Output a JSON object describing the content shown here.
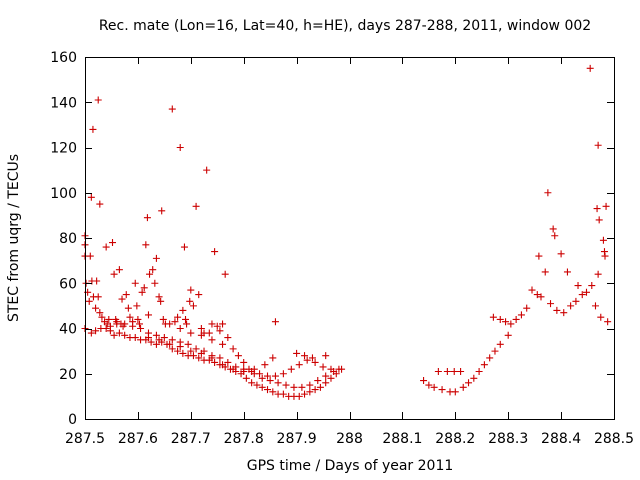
{
  "chart_data": {
    "type": "scatter",
    "title": "Rec. mate (Lon=16, Lat=40, h=HE), days 287-288, 2011, window 002",
    "xlabel": "GPS time / Days of year 2011",
    "ylabel": "STEC from uqrg / TECUs",
    "xlim": [
      287.5,
      288.5
    ],
    "ylim": [
      0,
      160
    ],
    "xticks": [
      {
        "value": 287.5,
        "label": "287.5"
      },
      {
        "value": 287.6,
        "label": "287.6"
      },
      {
        "value": 287.7,
        "label": "287.7"
      },
      {
        "value": 287.8,
        "label": "287.8"
      },
      {
        "value": 287.9,
        "label": "287.9"
      },
      {
        "value": 288.0,
        "label": "288"
      },
      {
        "value": 288.1,
        "label": "288.1"
      },
      {
        "value": 288.2,
        "label": "288.2"
      },
      {
        "value": 288.3,
        "label": "288.3"
      },
      {
        "value": 288.4,
        "label": "288.4"
      },
      {
        "value": 288.5,
        "label": "288.5"
      }
    ],
    "yticks": [
      {
        "value": 0,
        "label": "0"
      },
      {
        "value": 20,
        "label": "20"
      },
      {
        "value": 40,
        "label": "40"
      },
      {
        "value": 60,
        "label": "60"
      },
      {
        "value": 80,
        "label": "80"
      },
      {
        "value": 100,
        "label": "100"
      },
      {
        "value": 120,
        "label": "120"
      },
      {
        "value": 140,
        "label": "140"
      },
      {
        "value": 160,
        "label": "160"
      }
    ],
    "grid": false,
    "marker": "+",
    "marker_color": "#cc0000",
    "series": [
      {
        "name": "STEC",
        "points": [
          [
            287.5,
            81
          ],
          [
            287.5,
            77
          ],
          [
            287.5,
            72
          ],
          [
            287.502,
            60
          ],
          [
            287.505,
            56
          ],
          [
            287.508,
            52
          ],
          [
            287.512,
            98
          ],
          [
            287.515,
            128
          ],
          [
            287.51,
            72
          ],
          [
            287.513,
            61
          ],
          [
            287.516,
            54
          ],
          [
            287.52,
            49
          ],
          [
            287.525,
            141
          ],
          [
            287.528,
            95
          ],
          [
            287.522,
            61
          ],
          [
            287.525,
            54
          ],
          [
            287.528,
            47
          ],
          [
            287.532,
            45
          ],
          [
            287.54,
            76
          ],
          [
            287.537,
            43
          ],
          [
            287.542,
            42
          ],
          [
            287.548,
            41
          ],
          [
            287.552,
            78
          ],
          [
            287.555,
            64
          ],
          [
            287.558,
            44
          ],
          [
            287.56,
            42
          ],
          [
            287.565,
            66
          ],
          [
            287.57,
            53
          ],
          [
            287.568,
            42
          ],
          [
            287.572,
            41
          ],
          [
            287.578,
            55
          ],
          [
            287.582,
            49
          ],
          [
            287.585,
            45
          ],
          [
            287.59,
            43
          ],
          [
            287.595,
            60
          ],
          [
            287.598,
            50
          ],
          [
            287.6,
            44
          ],
          [
            287.603,
            42
          ],
          [
            287.608,
            56
          ],
          [
            287.612,
            58
          ],
          [
            287.615,
            77
          ],
          [
            287.618,
            89
          ],
          [
            287.62,
            46
          ],
          [
            287.622,
            64
          ],
          [
            287.628,
            66
          ],
          [
            287.632,
            60
          ],
          [
            287.635,
            71
          ],
          [
            287.64,
            54
          ],
          [
            287.643,
            52
          ],
          [
            287.645,
            92
          ],
          [
            287.648,
            44
          ],
          [
            287.652,
            42
          ],
          [
            287.665,
            137
          ],
          [
            287.67,
            43
          ],
          [
            287.675,
            45
          ],
          [
            287.68,
            120
          ],
          [
            287.685,
            48
          ],
          [
            287.69,
            44
          ],
          [
            287.688,
            76
          ],
          [
            287.692,
            42
          ],
          [
            287.698,
            52
          ],
          [
            287.7,
            57
          ],
          [
            287.705,
            50
          ],
          [
            287.71,
            94
          ],
          [
            287.715,
            55
          ],
          [
            287.72,
            40
          ],
          [
            287.725,
            38
          ],
          [
            287.73,
            110
          ],
          [
            287.735,
            38
          ],
          [
            287.74,
            42
          ],
          [
            287.745,
            74
          ],
          [
            287.75,
            41
          ],
          [
            287.755,
            39
          ],
          [
            287.76,
            42
          ],
          [
            287.765,
            64
          ],
          [
            287.77,
            36
          ],
          [
            287.86,
            43
          ],
          [
            287.5,
            40
          ],
          [
            287.512,
            38
          ],
          [
            287.52,
            39
          ],
          [
            287.53,
            40
          ],
          [
            287.54,
            40
          ],
          [
            287.548,
            39
          ],
          [
            287.555,
            37
          ],
          [
            287.565,
            38
          ],
          [
            287.575,
            37
          ],
          [
            287.585,
            36
          ],
          [
            287.595,
            36
          ],
          [
            287.605,
            35
          ],
          [
            287.615,
            35
          ],
          [
            287.625,
            34
          ],
          [
            287.635,
            33
          ],
          [
            287.645,
            34
          ],
          [
            287.655,
            33
          ],
          [
            287.665,
            31
          ],
          [
            287.675,
            30
          ],
          [
            287.685,
            29
          ],
          [
            287.695,
            28
          ],
          [
            287.705,
            28
          ],
          [
            287.715,
            27
          ],
          [
            287.725,
            26
          ],
          [
            287.735,
            26
          ],
          [
            287.745,
            25
          ],
          [
            287.755,
            24
          ],
          [
            287.765,
            23
          ],
          [
            287.775,
            22
          ],
          [
            287.785,
            21
          ],
          [
            287.795,
            20
          ],
          [
            287.805,
            18
          ],
          [
            287.815,
            16
          ],
          [
            287.825,
            15
          ],
          [
            287.835,
            14
          ],
          [
            287.845,
            13
          ],
          [
            287.855,
            12
          ],
          [
            287.865,
            11
          ],
          [
            287.875,
            11
          ],
          [
            287.885,
            10
          ],
          [
            287.895,
            10
          ],
          [
            287.905,
            10
          ],
          [
            287.915,
            11
          ],
          [
            287.925,
            12
          ],
          [
            287.935,
            13
          ],
          [
            287.945,
            14
          ],
          [
            287.955,
            16
          ],
          [
            287.965,
            18
          ],
          [
            287.975,
            20
          ],
          [
            287.985,
            22
          ],
          [
            287.545,
            44
          ],
          [
            287.56,
            43
          ],
          [
            287.575,
            42
          ],
          [
            287.59,
            41
          ],
          [
            287.605,
            40
          ],
          [
            287.62,
            38
          ],
          [
            287.635,
            37
          ],
          [
            287.65,
            36
          ],
          [
            287.665,
            35
          ],
          [
            287.68,
            34
          ],
          [
            287.695,
            33
          ],
          [
            287.71,
            31
          ],
          [
            287.725,
            30
          ],
          [
            287.74,
            28
          ],
          [
            287.755,
            27
          ],
          [
            287.77,
            25
          ],
          [
            287.785,
            23
          ],
          [
            287.8,
            22
          ],
          [
            287.815,
            21
          ],
          [
            287.83,
            20
          ],
          [
            287.845,
            19
          ],
          [
            287.86,
            19
          ],
          [
            287.875,
            20
          ],
          [
            287.89,
            22
          ],
          [
            287.905,
            24
          ],
          [
            287.92,
            26
          ],
          [
            287.935,
            25
          ],
          [
            287.95,
            23
          ],
          [
            287.965,
            22
          ],
          [
            287.98,
            22
          ],
          [
            287.62,
            36
          ],
          [
            287.64,
            35
          ],
          [
            287.66,
            33
          ],
          [
            287.68,
            32
          ],
          [
            287.7,
            30
          ],
          [
            287.72,
            29
          ],
          [
            287.74,
            27
          ],
          [
            287.76,
            24
          ],
          [
            287.78,
            22
          ],
          [
            287.8,
            21
          ],
          [
            287.82,
            22
          ],
          [
            287.84,
            24
          ],
          [
            287.855,
            27
          ],
          [
            287.9,
            29
          ],
          [
            287.915,
            28
          ],
          [
            287.93,
            27
          ],
          [
            287.955,
            28
          ],
          [
            287.66,
            42
          ],
          [
            287.68,
            40
          ],
          [
            287.7,
            38
          ],
          [
            287.72,
            37
          ],
          [
            287.74,
            35
          ],
          [
            287.76,
            33
          ],
          [
            287.78,
            31
          ],
          [
            287.79,
            28
          ],
          [
            287.8,
            25
          ],
          [
            287.81,
            22
          ],
          [
            287.82,
            20
          ],
          [
            287.835,
            18
          ],
          [
            287.85,
            17
          ],
          [
            287.865,
            16
          ],
          [
            287.88,
            15
          ],
          [
            287.895,
            14
          ],
          [
            287.91,
            14
          ],
          [
            287.925,
            15
          ],
          [
            287.94,
            17
          ],
          [
            287.955,
            19
          ],
          [
            287.97,
            21
          ],
          [
            288.14,
            17
          ],
          [
            288.15,
            15
          ],
          [
            288.16,
            14
          ],
          [
            288.168,
            21
          ],
          [
            288.175,
            13
          ],
          [
            288.185,
            21
          ],
          [
            288.19,
            12
          ],
          [
            288.198,
            21
          ],
          [
            288.2,
            12
          ],
          [
            288.21,
            21
          ],
          [
            288.215,
            14
          ],
          [
            288.225,
            16
          ],
          [
            288.235,
            18
          ],
          [
            288.245,
            21
          ],
          [
            288.255,
            24
          ],
          [
            288.265,
            27
          ],
          [
            288.275,
            30
          ],
          [
            288.285,
            33
          ],
          [
            288.272,
            45
          ],
          [
            288.285,
            44
          ],
          [
            288.295,
            43
          ],
          [
            288.3,
            37
          ],
          [
            288.305,
            42
          ],
          [
            288.315,
            44
          ],
          [
            288.325,
            46
          ],
          [
            288.335,
            49
          ],
          [
            288.345,
            57
          ],
          [
            288.355,
            55
          ],
          [
            288.358,
            72
          ],
          [
            288.362,
            54
          ],
          [
            288.37,
            65
          ],
          [
            288.375,
            100
          ],
          [
            288.38,
            51
          ],
          [
            288.385,
            84
          ],
          [
            288.388,
            81
          ],
          [
            288.392,
            48
          ],
          [
            288.4,
            73
          ],
          [
            288.405,
            47
          ],
          [
            288.412,
            65
          ],
          [
            288.418,
            50
          ],
          [
            288.428,
            52
          ],
          [
            288.432,
            59
          ],
          [
            288.44,
            55
          ],
          [
            288.448,
            56
          ],
          [
            288.455,
            155
          ],
          [
            288.458,
            59
          ],
          [
            288.465,
            50
          ],
          [
            288.47,
            121
          ],
          [
            288.472,
            88
          ],
          [
            288.468,
            93
          ],
          [
            288.47,
            64
          ],
          [
            288.475,
            45
          ],
          [
            288.48,
            79
          ],
          [
            288.482,
            74
          ],
          [
            288.485,
            94
          ],
          [
            288.483,
            72
          ],
          [
            288.488,
            43
          ]
        ]
      }
    ]
  }
}
